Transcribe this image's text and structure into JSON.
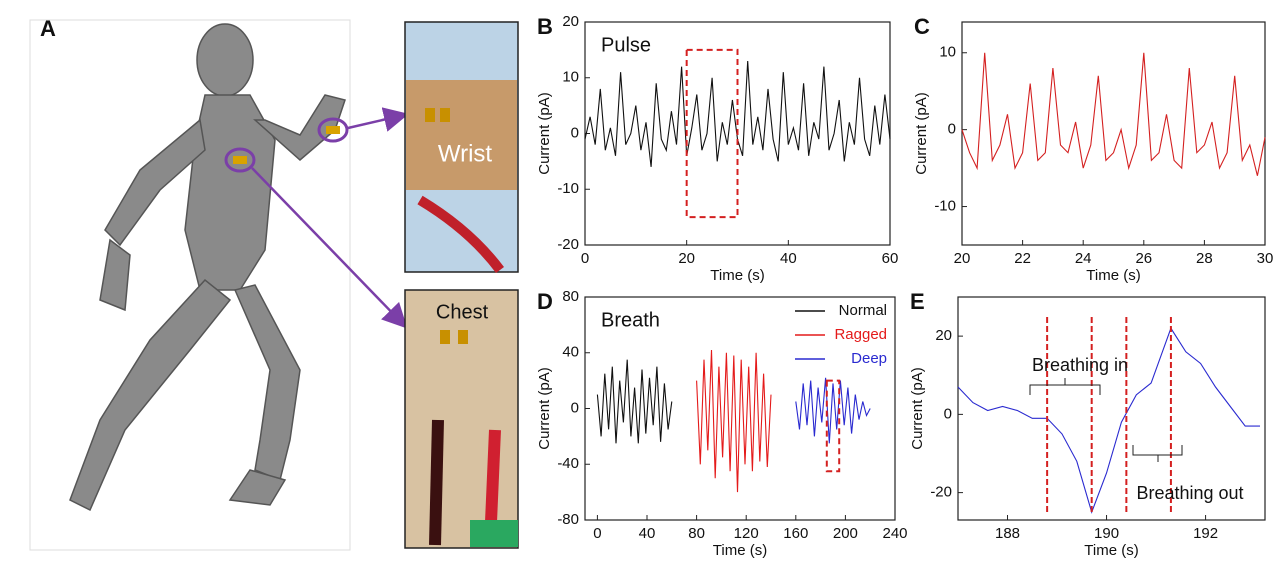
{
  "panel_a": {
    "label": "A"
  },
  "photos": [
    {
      "label": "Wrist"
    },
    {
      "label": "Chest"
    }
  ],
  "chart_data": [
    {
      "type": "line",
      "panel": "B",
      "title": "Pulse",
      "x_label": "Time (s)",
      "y_label": "Current (pA)",
      "color": "#111111",
      "x": [
        0,
        1,
        2,
        3,
        4,
        5,
        6,
        7,
        8,
        9,
        10,
        11,
        12,
        13,
        14,
        15,
        16,
        17,
        18,
        19,
        20,
        21,
        22,
        23,
        24,
        25,
        26,
        27,
        28,
        29,
        30,
        31,
        32,
        33,
        34,
        35,
        36,
        37,
        38,
        39,
        40,
        41,
        42,
        43,
        44,
        45,
        46,
        47,
        48,
        49,
        50,
        51,
        52,
        53,
        54,
        55,
        56,
        57,
        58,
        59,
        60
      ],
      "values": [
        -1,
        3,
        -2,
        8,
        -3,
        1,
        -4,
        11,
        -2,
        0,
        5,
        -3,
        2,
        -6,
        9,
        -1,
        -3,
        4,
        -2,
        12,
        -4,
        1,
        7,
        -3,
        0,
        10,
        -5,
        2,
        -2,
        6,
        -1,
        -4,
        13,
        -2,
        3,
        -3,
        8,
        -1,
        -5,
        11,
        -2,
        1,
        -3,
        9,
        -4,
        2,
        -1,
        12,
        -3,
        0,
        6,
        -5,
        2,
        -2,
        10,
        -1,
        -4,
        5,
        -2,
        7,
        -1
      ],
      "xlim": [
        0,
        60
      ],
      "xticks": [
        0,
        20,
        40,
        60
      ],
      "ylim": [
        -20,
        20
      ],
      "yticks": [
        -20,
        -10,
        0,
        10,
        20
      ],
      "highlight": {
        "x": [
          20,
          30
        ],
        "y": [
          -15,
          15
        ]
      }
    },
    {
      "type": "line",
      "panel": "C",
      "x_label": "Time (s)",
      "y_label": "Current (pA)",
      "color": "#d42020",
      "x": [
        20,
        20.25,
        20.5,
        20.75,
        21,
        21.25,
        21.5,
        21.75,
        22,
        22.25,
        22.5,
        22.75,
        23,
        23.25,
        23.5,
        23.75,
        24,
        24.25,
        24.5,
        24.75,
        25,
        25.25,
        25.5,
        25.75,
        26,
        26.25,
        26.5,
        26.75,
        27,
        27.25,
        27.5,
        27.75,
        28,
        28.25,
        28.5,
        28.75,
        29,
        29.25,
        29.5,
        29.75,
        30
      ],
      "values": [
        0,
        -3,
        -5,
        10,
        -4,
        -2,
        2,
        -5,
        -3,
        6,
        -4,
        -3,
        8,
        -2,
        -3,
        1,
        -5,
        -2,
        7,
        -4,
        -3,
        0,
        -5,
        -2,
        10,
        -4,
        -3,
        2,
        -4,
        -5,
        8,
        -3,
        -2,
        1,
        -5,
        -3,
        7,
        -4,
        -2,
        -6,
        -1
      ],
      "xlim": [
        20,
        30
      ],
      "xticks": [
        20,
        22,
        24,
        26,
        28,
        30
      ],
      "ylim": [
        -15,
        14
      ],
      "yticks": [
        -10,
        0,
        10
      ]
    },
    {
      "type": "line",
      "panel": "D",
      "title": "Breath",
      "x_label": "Time (s)",
      "y_label": "Current (pA)",
      "series": [
        {
          "name": "Normal",
          "color": "#111111",
          "x": [
            0,
            3,
            6,
            9,
            12,
            15,
            18,
            21,
            24,
            27,
            30,
            33,
            36,
            39,
            42,
            45,
            48,
            51,
            54,
            57,
            60
          ],
          "values": [
            10,
            -20,
            25,
            -15,
            30,
            -25,
            20,
            -10,
            35,
            -20,
            15,
            -25,
            28,
            -18,
            22,
            -12,
            30,
            -24,
            18,
            -15,
            5
          ]
        },
        {
          "name": "Ragged",
          "color": "#e41a1a",
          "x": [
            80,
            83,
            86,
            89,
            92,
            95,
            98,
            101,
            104,
            107,
            110,
            113,
            116,
            119,
            122,
            125,
            128,
            131,
            134,
            137,
            140
          ],
          "values": [
            20,
            -40,
            35,
            -30,
            42,
            -50,
            30,
            -35,
            40,
            -45,
            38,
            -60,
            35,
            -40,
            30,
            -45,
            40,
            -38,
            25,
            -42,
            10
          ]
        },
        {
          "name": "Deep",
          "color": "#2a2ad0",
          "x": [
            160,
            163,
            166,
            169,
            172,
            175,
            178,
            181,
            184,
            187,
            190,
            193,
            196,
            199,
            202,
            205,
            208,
            211,
            214,
            217,
            220
          ],
          "values": [
            5,
            -15,
            18,
            -12,
            20,
            -20,
            15,
            -10,
            22,
            -25,
            18,
            -15,
            20,
            -12,
            15,
            -18,
            10,
            -8,
            5,
            -5,
            0
          ]
        }
      ],
      "xlim": [
        -10,
        240
      ],
      "xticks": [
        0,
        40,
        80,
        120,
        160,
        200,
        240
      ],
      "ylim": [
        -80,
        80
      ],
      "yticks": [
        -80,
        -40,
        0,
        40,
        80
      ],
      "highlight": {
        "x": [
          185,
          195
        ],
        "y": [
          -45,
          20
        ]
      }
    },
    {
      "type": "line",
      "panel": "E",
      "x_label": "Time (s)",
      "y_label": "Current (pA)",
      "color": "#2a2ad0",
      "x": [
        187,
        187.3,
        187.6,
        187.9,
        188.2,
        188.5,
        188.8,
        189.1,
        189.4,
        189.7,
        190.0,
        190.3,
        190.6,
        190.9,
        191.1,
        191.3,
        191.6,
        191.9,
        192.2,
        192.5,
        192.8,
        193.1
      ],
      "values": [
        7,
        3,
        1,
        2,
        1,
        -1,
        -1,
        -5,
        -12,
        -25,
        -15,
        -2,
        5,
        8,
        15,
        22,
        16,
        13,
        7,
        2,
        -3,
        -3
      ],
      "xlim": [
        187,
        193.2
      ],
      "xticks": [
        188,
        190,
        192
      ],
      "ylim": [
        -27,
        30
      ],
      "yticks": [
        -20,
        0,
        20
      ],
      "markers": [
        188.8,
        189.7,
        190.4,
        191.3
      ],
      "annotations": [
        "Breathing in",
        "Breathing out"
      ]
    }
  ]
}
